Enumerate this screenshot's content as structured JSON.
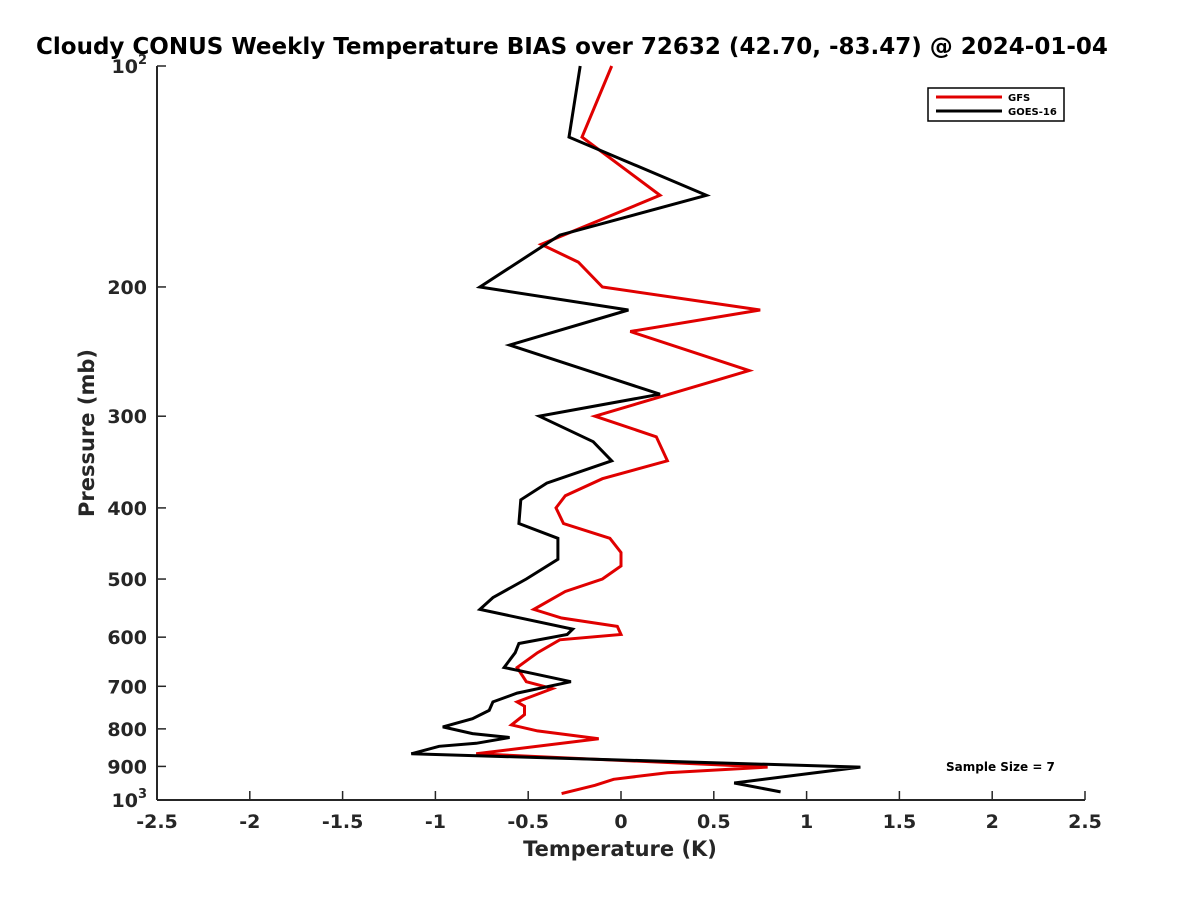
{
  "chart_data": {
    "type": "line",
    "title": "Cloudy CONUS Weekly Temperature BIAS over 72632 (42.70, -83.47) @ 2024-01-04",
    "xlabel": "Temperature (K)",
    "ylabel": "Pressure (mb)",
    "xlim": [
      -2.5,
      2.5
    ],
    "ylim": [
      100,
      1000
    ],
    "y_scale": "log",
    "y_reversed": true,
    "grid": false,
    "legend_position": "top-right",
    "x_ticks": [
      "-2.5",
      "-2",
      "-1.5",
      "-1",
      "-0.5",
      "0",
      "0.5",
      "1",
      "1.5",
      "2",
      "2.5"
    ],
    "x_tick_values": [
      -2.5,
      -2,
      -1.5,
      -1,
      -0.5,
      0,
      0.5,
      1,
      1.5,
      2,
      2.5
    ],
    "y_ticks": [
      {
        "value": 100,
        "base": "10",
        "exp": "2"
      },
      {
        "value": 200,
        "label": "200"
      },
      {
        "value": 300,
        "label": "300"
      },
      {
        "value": 400,
        "label": "400"
      },
      {
        "value": 500,
        "label": "500"
      },
      {
        "value": 600,
        "label": "600"
      },
      {
        "value": 700,
        "label": "700"
      },
      {
        "value": 800,
        "label": "800"
      },
      {
        "value": 900,
        "label": "900"
      },
      {
        "value": 1000,
        "base": "10",
        "exp": "3"
      }
    ],
    "series": [
      {
        "name": "GFS",
        "color": "#e00000",
        "points": [
          [
            -0.05,
            100
          ],
          [
            -0.21,
            125
          ],
          [
            0.21,
            150
          ],
          [
            -0.43,
            175
          ],
          [
            -0.23,
            185
          ],
          [
            -0.1,
            200
          ],
          [
            0.75,
            215
          ],
          [
            0.05,
            230
          ],
          [
            0.69,
            260
          ],
          [
            -0.14,
            300
          ],
          [
            0.19,
            320
          ],
          [
            0.25,
            345
          ],
          [
            -0.1,
            365
          ],
          [
            -0.3,
            385
          ],
          [
            -0.35,
            400
          ],
          [
            -0.31,
            420
          ],
          [
            -0.06,
            440
          ],
          [
            0.0,
            460
          ],
          [
            0.0,
            480
          ],
          [
            -0.1,
            500
          ],
          [
            -0.3,
            520
          ],
          [
            -0.47,
            550
          ],
          [
            -0.32,
            565
          ],
          [
            -0.02,
            580
          ],
          [
            0.0,
            595
          ],
          [
            -0.33,
            605
          ],
          [
            -0.45,
            630
          ],
          [
            -0.56,
            660
          ],
          [
            -0.51,
            690
          ],
          [
            -0.37,
            705
          ],
          [
            -0.56,
            735
          ],
          [
            -0.52,
            745
          ],
          [
            -0.52,
            765
          ],
          [
            -0.59,
            790
          ],
          [
            -0.45,
            805
          ],
          [
            -0.12,
            825
          ],
          [
            -0.78,
            865
          ],
          [
            0.79,
            902
          ],
          [
            0.25,
            918
          ],
          [
            -0.04,
            937
          ],
          [
            -0.14,
            955
          ],
          [
            -0.32,
            980
          ]
        ]
      },
      {
        "name": "GOES-16",
        "color": "#000000",
        "points": [
          [
            -0.22,
            100
          ],
          [
            -0.28,
            125
          ],
          [
            0.46,
            150
          ],
          [
            -0.33,
            170
          ],
          [
            -0.76,
            200
          ],
          [
            0.04,
            215
          ],
          [
            -0.6,
            240
          ],
          [
            0.21,
            280
          ],
          [
            -0.44,
            300
          ],
          [
            -0.15,
            325
          ],
          [
            -0.05,
            345
          ],
          [
            -0.4,
            370
          ],
          [
            -0.54,
            390
          ],
          [
            -0.55,
            420
          ],
          [
            -0.34,
            440
          ],
          [
            -0.34,
            470
          ],
          [
            -0.51,
            500
          ],
          [
            -0.69,
            530
          ],
          [
            -0.76,
            550
          ],
          [
            -0.26,
            585
          ],
          [
            -0.29,
            595
          ],
          [
            -0.55,
            612
          ],
          [
            -0.57,
            630
          ],
          [
            -0.63,
            660
          ],
          [
            -0.48,
            672
          ],
          [
            -0.27,
            690
          ],
          [
            -0.56,
            715
          ],
          [
            -0.69,
            735
          ],
          [
            -0.71,
            755
          ],
          [
            -0.8,
            775
          ],
          [
            -0.96,
            795
          ],
          [
            -0.8,
            812
          ],
          [
            -0.6,
            822
          ],
          [
            -0.78,
            837
          ],
          [
            -0.98,
            845
          ],
          [
            -1.13,
            865
          ],
          [
            1.29,
            902
          ],
          [
            1.02,
            920
          ],
          [
            0.61,
            948
          ],
          [
            0.86,
            975
          ]
        ]
      }
    ],
    "legend": [
      {
        "label": "GFS",
        "color": "#e00000"
      },
      {
        "label": "GOES-16",
        "color": "#000000"
      }
    ],
    "annotations": [
      {
        "text": "Sample Size = 7"
      }
    ]
  }
}
